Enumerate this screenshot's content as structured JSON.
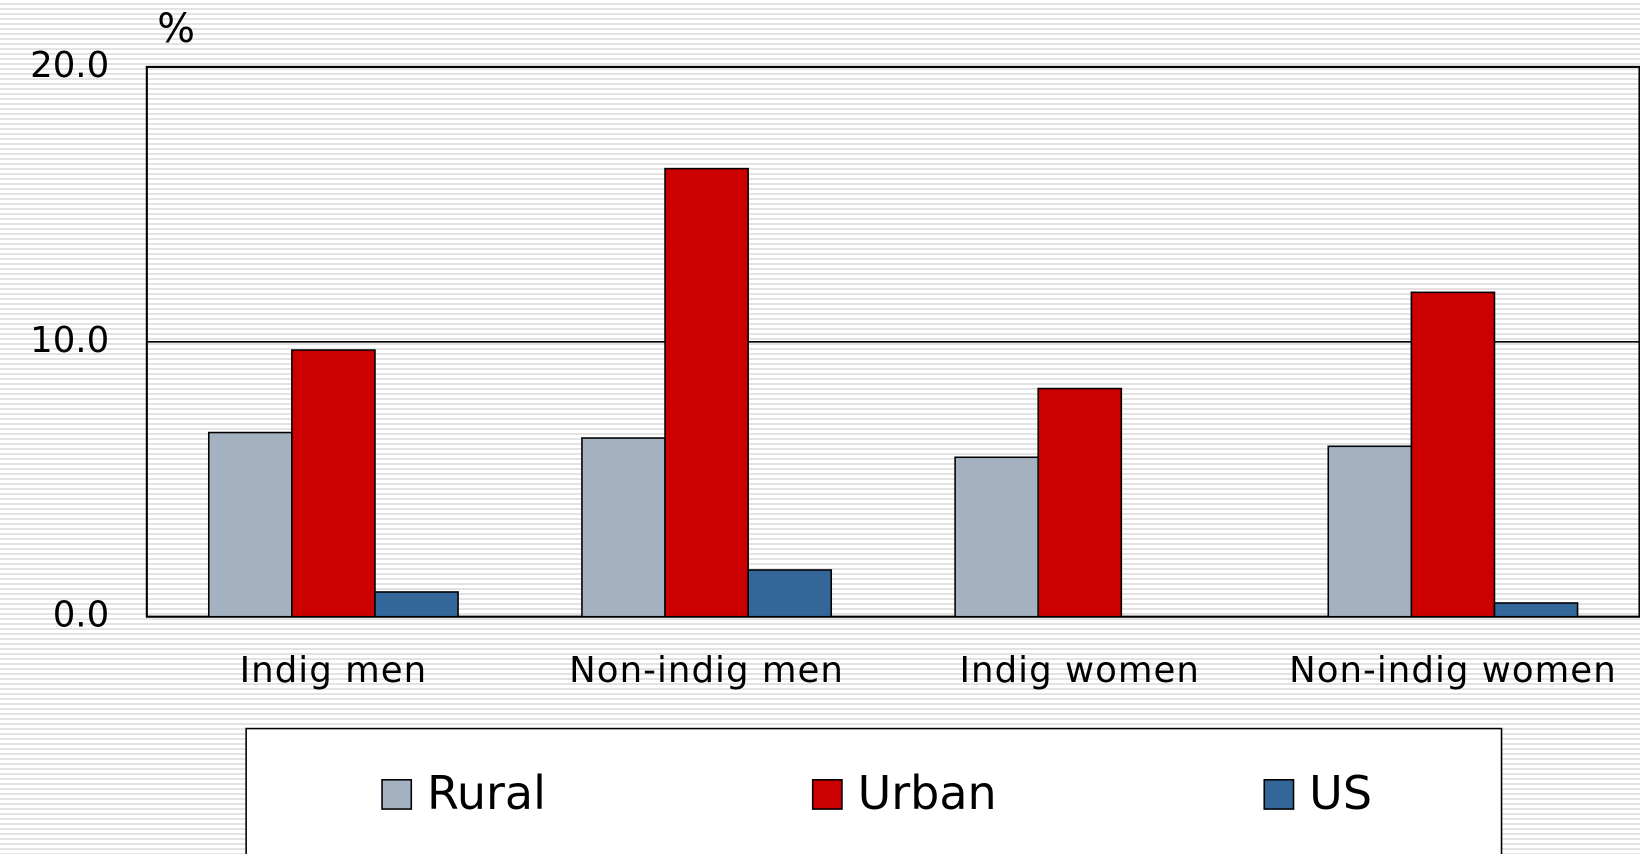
{
  "chart_data": {
    "type": "bar",
    "y_label": "%",
    "categories": [
      "Indig men",
      "Non-indig men",
      "Indig women",
      "Non-indig women"
    ],
    "series": [
      {
        "name": "Rural",
        "color": "#a3b1c0",
        "values": [
          6.7,
          6.5,
          5.8,
          6.2
        ]
      },
      {
        "name": "Urban",
        "color": "#cc0000",
        "values": [
          9.7,
          16.3,
          8.3,
          11.8
        ]
      },
      {
        "name": "US",
        "color": "#336699",
        "values": [
          0.9,
          1.7,
          null,
          0.5
        ]
      }
    ],
    "ylim": [
      0,
      20
    ],
    "yticks": [
      {
        "value": 0,
        "label": "0.0"
      },
      {
        "value": 10,
        "label": "10.0"
      },
      {
        "value": 20,
        "label": "20.0"
      }
    ],
    "grid": true,
    "legend": "bottom"
  }
}
